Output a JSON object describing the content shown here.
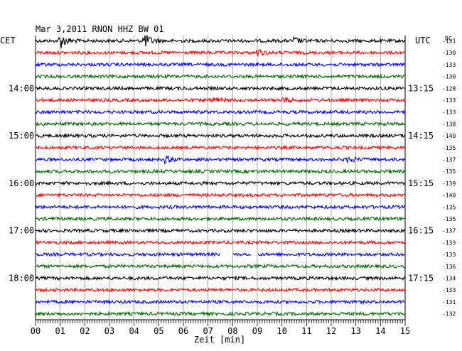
{
  "header": {
    "title": "Mar 3,2011   RNON HHZ BW 01",
    "left_timezone": "CET",
    "right_timezone": "UTC",
    "dc_label": "DC"
  },
  "chart_data": {
    "type": "line",
    "title": "Mar 3,2011   RNON HHZ BW 01",
    "xlabel": "Zeit [min]",
    "ylabel": "",
    "xlim": [
      0,
      15
    ],
    "x_ticks": [
      "00",
      "01",
      "02",
      "03",
      "04",
      "05",
      "06",
      "07",
      "08",
      "09",
      "10",
      "11",
      "12",
      "13",
      "14",
      "15"
    ],
    "left_time_labels": [
      {
        "row": 4,
        "label": "14:00"
      },
      {
        "row": 8,
        "label": "15:00"
      },
      {
        "row": 12,
        "label": "16:00"
      },
      {
        "row": 16,
        "label": "17:00"
      },
      {
        "row": 20,
        "label": "18:00"
      }
    ],
    "right_time_labels": [
      {
        "row": 4,
        "label": "13:15"
      },
      {
        "row": 8,
        "label": "14:15"
      },
      {
        "row": 12,
        "label": "15:15"
      },
      {
        "row": 16,
        "label": "16:15"
      },
      {
        "row": 20,
        "label": "17:15"
      }
    ],
    "trace_colors": [
      "#000000",
      "#ff0000",
      "#0000ff",
      "#006400"
    ],
    "dc_offsets": [
      -131,
      -130,
      -133,
      -130,
      -128,
      -133,
      -133,
      -138,
      -140,
      -135,
      -137,
      -135,
      -139,
      -140,
      -135,
      -135,
      -137,
      -133,
      -133,
      -136,
      -134,
      -133,
      -131,
      -132
    ],
    "events": [
      {
        "row": 0,
        "minute": 1.0,
        "amplitude": "large"
      },
      {
        "row": 0,
        "minute": 4.4,
        "amplitude": "large"
      },
      {
        "row": 0,
        "minute": 10.5,
        "amplitude": "small"
      },
      {
        "row": 1,
        "minute": 9.0,
        "amplitude": "small"
      },
      {
        "row": 5,
        "minute": 7.2,
        "amplitude": "small"
      },
      {
        "row": 5,
        "minute": 10.0,
        "amplitude": "small"
      },
      {
        "row": 10,
        "minute": 5.3,
        "amplitude": "small"
      },
      {
        "row": 10,
        "minute": 12.7,
        "amplitude": "small"
      }
    ],
    "gaps": [
      {
        "row": 18,
        "start_minute": 7.5,
        "end_minute": 8.0
      },
      {
        "row": 18,
        "start_minute": 8.75,
        "end_minute": 9.0
      }
    ]
  }
}
